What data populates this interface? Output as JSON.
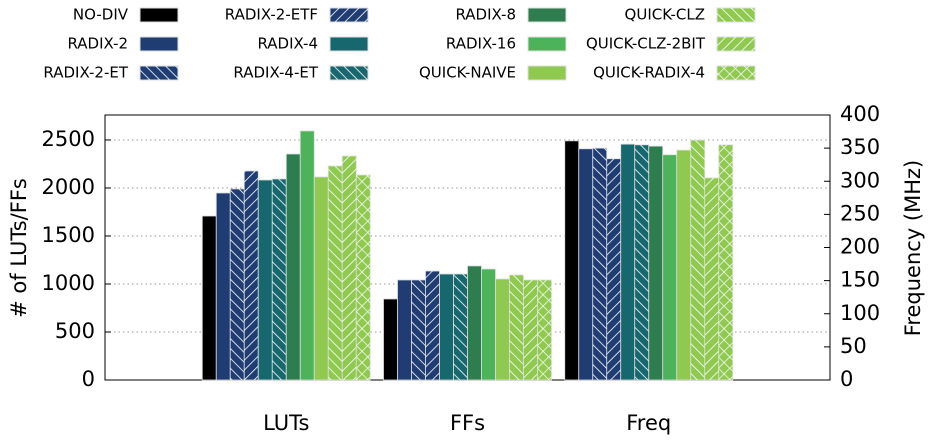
{
  "chart_data": {
    "type": "bar",
    "categories": [
      "LUTs",
      "FFs",
      "Freq"
    ],
    "axis_by_category": [
      "y",
      "y",
      "y2"
    ],
    "ylabel": "# of LUTs/FFs",
    "y2label": "Frequency (MHz)",
    "ylim": [
      0,
      2760
    ],
    "yticks": [
      0,
      500,
      1000,
      1500,
      2000,
      2500
    ],
    "y2lim": [
      0,
      400
    ],
    "y2ticks": [
      0,
      50,
      100,
      150,
      200,
      250,
      300,
      350,
      400
    ],
    "grid": true,
    "legend": "top",
    "series": [
      {
        "name": "NO-DIV",
        "color": "#000000",
        "hatch": null,
        "values": [
          1708,
          844,
          361
        ]
      },
      {
        "name": "RADIX-2",
        "color": "#1f3d73",
        "hatch": null,
        "values": [
          1948,
          1042,
          349
        ]
      },
      {
        "name": "RADIX-2-ET",
        "color": "#1f3d73",
        "hatch": "back",
        "values": [
          1990,
          1042,
          350
        ]
      },
      {
        "name": "RADIX-2-ETF",
        "color": "#1f3d73",
        "hatch": "forward",
        "values": [
          2177,
          1135,
          334
        ]
      },
      {
        "name": "RADIX-4",
        "color": "#16676e",
        "hatch": null,
        "values": [
          2083,
          1104,
          356
        ]
      },
      {
        "name": "RADIX-4-ET",
        "color": "#16676e",
        "hatch": "back",
        "values": [
          2094,
          1104,
          355
        ]
      },
      {
        "name": "RADIX-8",
        "color": "#2e7d4f",
        "hatch": null,
        "values": [
          2354,
          1188,
          353
        ]
      },
      {
        "name": "RADIX-16",
        "color": "#4db35a",
        "hatch": null,
        "values": [
          2594,
          1156,
          340
        ]
      },
      {
        "name": "QUICK-NAIVE",
        "color": "#8fc94f",
        "hatch": null,
        "values": [
          2115,
          1052,
          347
        ]
      },
      {
        "name": "QUICK-CLZ",
        "color": "#8fc94f",
        "hatch": "back",
        "values": [
          2229,
          1094,
          362
        ]
      },
      {
        "name": "QUICK-CLZ-2BIT",
        "color": "#8fc94f",
        "hatch": "forward",
        "values": [
          2333,
          1042,
          305
        ]
      },
      {
        "name": "QUICK-RADIX-4",
        "color": "#8fc94f",
        "hatch": "cross",
        "values": [
          2135,
          1042,
          355
        ]
      }
    ]
  }
}
